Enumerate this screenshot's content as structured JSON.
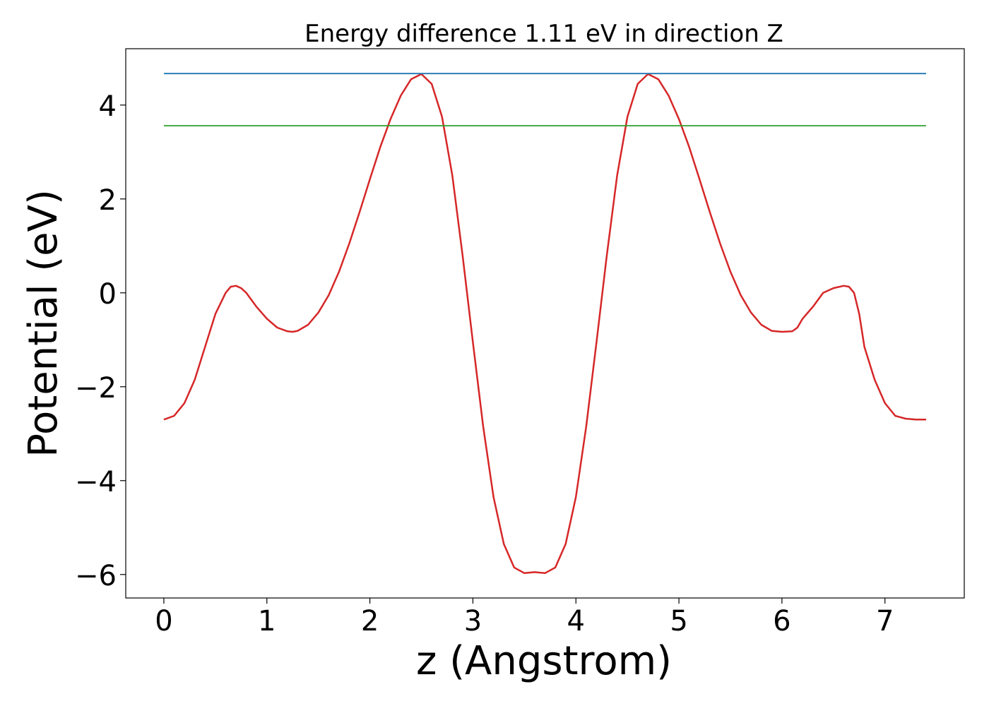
{
  "chart_data": {
    "type": "line",
    "title": "Energy difference 1.11 eV in direction Z",
    "xlabel": "z (Angstrom)",
    "ylabel": "Potential (eV)",
    "xlim": [
      -0.37,
      7.77
    ],
    "ylim": [
      -6.5,
      5.2
    ],
    "xticks": [
      0,
      1,
      2,
      3,
      4,
      5,
      6,
      7
    ],
    "xtick_labels": [
      "0",
      "1",
      "2",
      "3",
      "4",
      "5",
      "6",
      "7"
    ],
    "yticks": [
      4,
      2,
      0,
      -2,
      -4,
      -6
    ],
    "ytick_labels": [
      "4",
      "2",
      "0",
      "−2",
      "−4",
      "−6"
    ],
    "grid": false,
    "series": [
      {
        "color": "#d62728",
        "x": [
          0.0,
          0.1,
          0.2,
          0.3,
          0.4,
          0.5,
          0.6,
          0.65,
          0.7,
          0.75,
          0.8,
          0.9,
          1.0,
          1.1,
          1.2,
          1.25,
          1.3,
          1.4,
          1.5,
          1.6,
          1.7,
          1.8,
          1.9,
          2.0,
          2.1,
          2.2,
          2.3,
          2.4,
          2.5,
          2.6,
          2.7,
          2.8,
          2.9,
          3.0,
          3.1,
          3.2,
          3.3,
          3.4,
          3.5,
          3.6,
          3.7,
          3.8,
          3.9,
          4.0,
          4.1,
          4.2,
          4.3,
          4.4,
          4.5,
          4.6,
          4.7,
          4.8,
          4.9,
          5.0,
          5.1,
          5.2,
          5.3,
          5.4,
          5.5,
          5.6,
          5.7,
          5.8,
          5.9,
          6.0,
          6.1,
          6.15,
          6.2,
          6.3,
          6.4,
          6.5,
          6.6,
          6.65,
          6.7,
          6.75,
          6.8,
          6.9,
          7.0,
          7.1,
          7.2,
          7.3,
          7.4
        ],
        "y": [
          -2.7,
          -2.62,
          -2.35,
          -1.85,
          -1.15,
          -0.45,
          0.0,
          0.13,
          0.15,
          0.1,
          0.0,
          -0.3,
          -0.55,
          -0.74,
          -0.82,
          -0.83,
          -0.81,
          -0.68,
          -0.42,
          -0.05,
          0.45,
          1.05,
          1.72,
          2.42,
          3.1,
          3.7,
          4.2,
          4.55,
          4.66,
          4.45,
          3.75,
          2.5,
          0.8,
          -1.05,
          -2.85,
          -4.35,
          -5.35,
          -5.85,
          -5.97,
          -5.95,
          -5.97,
          -5.85,
          -5.35,
          -4.35,
          -2.85,
          -1.05,
          0.8,
          2.5,
          3.75,
          4.45,
          4.66,
          4.55,
          4.2,
          3.7,
          3.1,
          2.42,
          1.72,
          1.05,
          0.45,
          -0.05,
          -0.42,
          -0.68,
          -0.81,
          -0.83,
          -0.82,
          -0.74,
          -0.55,
          -0.3,
          0.0,
          0.1,
          0.15,
          0.13,
          0.0,
          -0.45,
          -1.15,
          -1.85,
          -2.35,
          -2.62,
          -2.68,
          -2.7,
          -2.7
        ]
      },
      {
        "color": "#1f77b4",
        "x": [
          0.0,
          7.4
        ],
        "y": [
          4.67,
          4.67
        ]
      },
      {
        "color": "#2ca02c",
        "x": [
          0.0,
          7.4
        ],
        "y": [
          3.56,
          3.56
        ]
      }
    ]
  }
}
